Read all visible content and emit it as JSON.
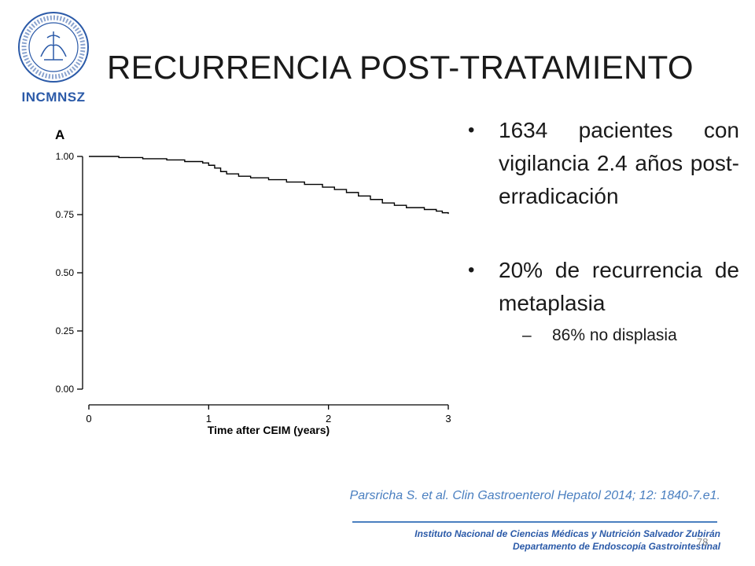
{
  "header": {
    "logo_text": "INCMNSZ",
    "logo_seal_text": "INSTITUTO NACIONAL DE CIENCIAS MÉDICAS Y NUTRICIÓN SALVADOR ZUBIRÁN",
    "title": "RECURRENCIA POST-TRATAMIENTO"
  },
  "chart_data": {
    "type": "line",
    "panel_label": "A",
    "xlabel": "Time after CEIM (years)",
    "ylabel": "",
    "xlim": [
      0,
      3
    ],
    "ylim": [
      0,
      1
    ],
    "x_ticks": [
      "0",
      "1",
      "2",
      "3"
    ],
    "y_ticks": [
      "1.00",
      "0.75",
      "0.50",
      "0.25",
      "0.00"
    ],
    "step": true,
    "series": [
      {
        "x": [
          0,
          0.25,
          0.45,
          0.65,
          0.8,
          0.95,
          1.0,
          1.05,
          1.1,
          1.15,
          1.25,
          1.35,
          1.5,
          1.65,
          1.8,
          1.95,
          2.05,
          2.15,
          2.25,
          2.35,
          2.45,
          2.55,
          2.65,
          2.8,
          2.9,
          2.95,
          3.0
        ],
        "y": [
          1.0,
          0.995,
          0.99,
          0.985,
          0.978,
          0.972,
          0.962,
          0.95,
          0.935,
          0.925,
          0.915,
          0.908,
          0.9,
          0.89,
          0.88,
          0.868,
          0.858,
          0.845,
          0.83,
          0.815,
          0.8,
          0.79,
          0.78,
          0.772,
          0.765,
          0.758,
          0.753
        ]
      }
    ]
  },
  "bullets": [
    {
      "text": "1634 pacientes con vigilancia 2.4 años post-erradicación"
    },
    {
      "text": "20% de recurrencia de metaplasia"
    }
  ],
  "sub_bullet": "86% no displasia",
  "citation": "Parsricha S. et al. Clin Gastroenterol  Hepatol 2014; 12: 1840-7.e1.",
  "footer": {
    "line1": "Instituto Nacional de Ciencias Médicas y Nutrición Salvador Zubirán",
    "line2": "Departamento de Endoscopía Gastrointestinal"
  },
  "page_number": "78"
}
